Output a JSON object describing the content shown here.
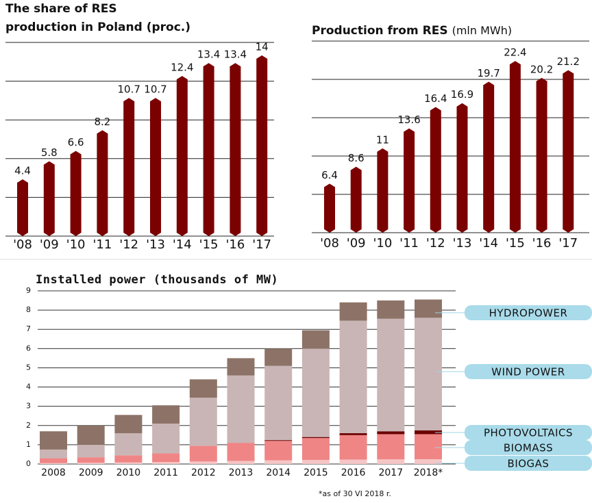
{
  "chart_data": [
    {
      "type": "bar",
      "title": [
        "The share of RES",
        "production in Poland  (proc.)"
      ],
      "categories": [
        "'08",
        "'09",
        "'10",
        "'11",
        "'12",
        "'13",
        "'14",
        "'15",
        "'16",
        "'17"
      ],
      "values": [
        4.4,
        5.8,
        6.6,
        8.2,
        10.7,
        10.7,
        12.4,
        13.4,
        13.4,
        14
      ],
      "color": "#7b0000",
      "ylim": [
        0,
        15
      ],
      "yticks": [
        0,
        3,
        6,
        9,
        12,
        15
      ],
      "grid": true
    },
    {
      "type": "bar",
      "title": "Production from RES",
      "unit": "(mln MWh)",
      "categories": [
        "'08",
        "'09",
        "'10",
        "'11",
        "'12",
        "'13",
        "'14",
        "'15",
        "'16",
        "'17"
      ],
      "values": [
        6.4,
        8.6,
        11,
        13.6,
        16.4,
        16.9,
        19.7,
        22.4,
        20.2,
        21.2
      ],
      "color": "#7b0000",
      "ylim": [
        0,
        25
      ],
      "yticks": [
        0,
        5,
        10,
        15,
        20,
        25
      ],
      "grid": true
    },
    {
      "type": "stacked_bar",
      "title": "Installed power (thousands of MW)",
      "categories": [
        "2008",
        "2009",
        "2010",
        "2011",
        "2012",
        "2013",
        "2014",
        "2015",
        "2016",
        "2017",
        "2018*"
      ],
      "series": [
        {
          "name": "BIOGAS",
          "color": "#f5c6c6",
          "values": [
            0.05,
            0.07,
            0.08,
            0.1,
            0.13,
            0.16,
            0.19,
            0.21,
            0.23,
            0.24,
            0.25
          ]
        },
        {
          "name": "BIOMASS",
          "color": "#f08585",
          "values": [
            0.25,
            0.28,
            0.37,
            0.45,
            0.82,
            0.94,
            1.01,
            1.14,
            1.27,
            1.31,
            1.3
          ]
        },
        {
          "name": "PHOTOVOLTAICS",
          "color": "#6b0000",
          "values": [
            0,
            0,
            0,
            0,
            0,
            0,
            0.04,
            0.05,
            0.1,
            0.15,
            0.2
          ]
        },
        {
          "name": "WIND POWER",
          "color": "#c9b5b5",
          "values": [
            0.45,
            0.65,
            1.15,
            1.55,
            2.5,
            3.5,
            3.86,
            4.6,
            5.85,
            5.85,
            5.85
          ]
        },
        {
          "name": "HYDROPOWER",
          "color": "#8d7367",
          "values": [
            0.95,
            1.0,
            0.95,
            0.95,
            0.95,
            0.9,
            0.9,
            0.95,
            0.95,
            0.95,
            0.95
          ]
        }
      ],
      "ylim": [
        0,
        9
      ],
      "yticks": [
        0,
        1,
        2,
        3,
        4,
        5,
        6,
        7,
        8,
        9
      ],
      "grid": true,
      "note": "*as of 30 VI 2018 r."
    }
  ]
}
